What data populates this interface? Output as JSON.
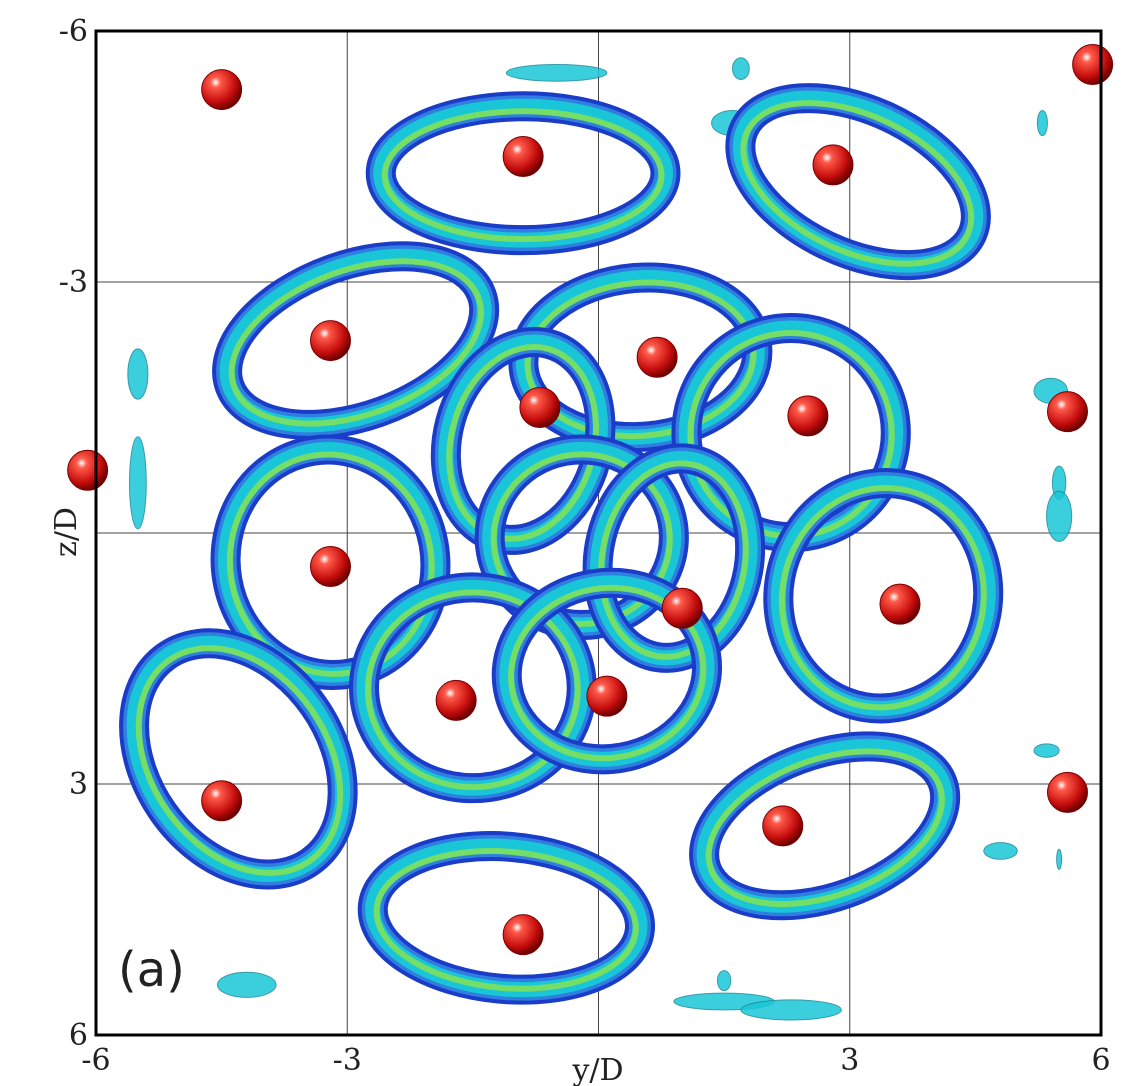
{
  "panel_label": "(a)",
  "axes": {
    "xlabel": "y/D",
    "ylabel": "z/D",
    "xlim": [
      -6,
      6
    ],
    "ylim": [
      -6,
      6
    ],
    "y_inverted": true,
    "grid": true,
    "xticks": [
      -6,
      -3,
      0,
      3,
      6
    ],
    "yticks": [
      -6,
      -3,
      0,
      3,
      6
    ],
    "xtick_labels": [
      "-6",
      "-3",
      "",
      "3",
      "6"
    ],
    "ytick_labels": [
      "-6",
      "-3",
      "",
      "3",
      "6"
    ]
  },
  "colors": {
    "particle": "#d01010",
    "tube_outer": "#1a3cc8",
    "tube_mid": "#19c6d8",
    "tube_inner": "#7ee05a",
    "tube_hot": "#f0a020"
  },
  "particles": [
    {
      "y": -4.5,
      "z": -5.3
    },
    {
      "y": 5.9,
      "z": -5.6
    },
    {
      "y": -0.9,
      "z": -4.5
    },
    {
      "y": 2.8,
      "z": -4.4
    },
    {
      "y": -3.2,
      "z": -2.3
    },
    {
      "y": 0.7,
      "z": -2.1
    },
    {
      "y": -0.7,
      "z": -1.5
    },
    {
      "y": 2.5,
      "z": -1.4
    },
    {
      "y": 5.6,
      "z": -1.45
    },
    {
      "y": -6.1,
      "z": -0.75
    },
    {
      "y": -3.2,
      "z": 0.4
    },
    {
      "y": 1.0,
      "z": 0.9
    },
    {
      "y": 3.6,
      "z": 0.85
    },
    {
      "y": -1.7,
      "z": 2.0
    },
    {
      "y": 0.1,
      "z": 1.95
    },
    {
      "y": -4.5,
      "z": 3.2
    },
    {
      "y": 5.6,
      "z": 3.1
    },
    {
      "y": 2.2,
      "z": 3.5
    },
    {
      "y": -0.9,
      "z": 4.8
    }
  ],
  "vortex_rings": [
    {
      "y": -0.9,
      "z": -4.3,
      "ry": 1.7,
      "rz": 0.8,
      "rot": 0
    },
    {
      "y": 3.1,
      "z": -4.2,
      "ry": 1.5,
      "rz": 0.85,
      "rot": 25
    },
    {
      "y": -2.9,
      "z": -2.3,
      "ry": 1.6,
      "rz": 0.9,
      "rot": -20
    },
    {
      "y": 0.5,
      "z": -2.1,
      "ry": 1.4,
      "rz": 0.95,
      "rot": -5
    },
    {
      "y": 2.3,
      "z": -1.2,
      "ry": 1.25,
      "rz": 1.25,
      "rot": 0
    },
    {
      "y": -0.9,
      "z": -1.1,
      "ry": 0.9,
      "rz": 1.2,
      "rot": 15
    },
    {
      "y": -0.2,
      "z": 0.05,
      "ry": 1.1,
      "rz": 1.05,
      "rot": 0
    },
    {
      "y": 0.9,
      "z": 0.3,
      "ry": 0.9,
      "rz": 1.2,
      "rot": 10
    },
    {
      "y": -3.2,
      "z": 0.35,
      "ry": 1.25,
      "rz": 1.35,
      "rot": -10
    },
    {
      "y": 3.4,
      "z": 0.75,
      "ry": 1.25,
      "rz": 1.35,
      "rot": 10
    },
    {
      "y": -1.5,
      "z": 1.85,
      "ry": 1.3,
      "rz": 1.2,
      "rot": 0
    },
    {
      "y": 0.1,
      "z": 1.65,
      "ry": 1.2,
      "rz": 1.05,
      "rot": -10
    },
    {
      "y": -4.3,
      "z": 2.7,
      "ry": 1.1,
      "rz": 1.5,
      "rot": -35
    },
    {
      "y": 2.7,
      "z": 3.5,
      "ry": 1.5,
      "rz": 0.85,
      "rot": -20
    },
    {
      "y": -1.1,
      "z": 4.6,
      "ry": 1.6,
      "rz": 0.85,
      "rot": 5
    }
  ],
  "fragments": [
    {
      "y": -0.5,
      "z": -5.5,
      "ry": 0.6,
      "rz": 0.1
    },
    {
      "y": 1.7,
      "z": -5.55,
      "ry": 0.1,
      "rz": 0.13
    },
    {
      "y": 1.6,
      "z": -4.9,
      "ry": 0.25,
      "rz": 0.15
    },
    {
      "y": 5.3,
      "z": -4.9,
      "ry": 0.06,
      "rz": 0.15
    },
    {
      "y": -5.5,
      "z": -1.9,
      "ry": 0.12,
      "rz": 0.3
    },
    {
      "y": -5.5,
      "z": -0.6,
      "ry": 0.1,
      "rz": 0.55
    },
    {
      "y": 5.4,
      "z": -1.7,
      "ry": 0.2,
      "rz": 0.15
    },
    {
      "y": 5.5,
      "z": -0.6,
      "ry": 0.08,
      "rz": 0.2
    },
    {
      "y": 5.5,
      "z": -0.2,
      "ry": 0.15,
      "rz": 0.3
    },
    {
      "y": 5.35,
      "z": 2.6,
      "ry": 0.15,
      "rz": 0.08
    },
    {
      "y": 4.8,
      "z": 3.8,
      "ry": 0.2,
      "rz": 0.1
    },
    {
      "y": 5.5,
      "z": 3.9,
      "ry": 0.03,
      "rz": 0.12
    },
    {
      "y": -4.2,
      "z": 5.4,
      "ry": 0.35,
      "rz": 0.15
    },
    {
      "y": 1.5,
      "z": 5.6,
      "ry": 0.6,
      "rz": 0.1
    },
    {
      "y": 2.3,
      "z": 5.7,
      "ry": 0.6,
      "rz": 0.12
    },
    {
      "y": 1.5,
      "z": 5.35,
      "ry": 0.08,
      "rz": 0.12
    }
  ]
}
